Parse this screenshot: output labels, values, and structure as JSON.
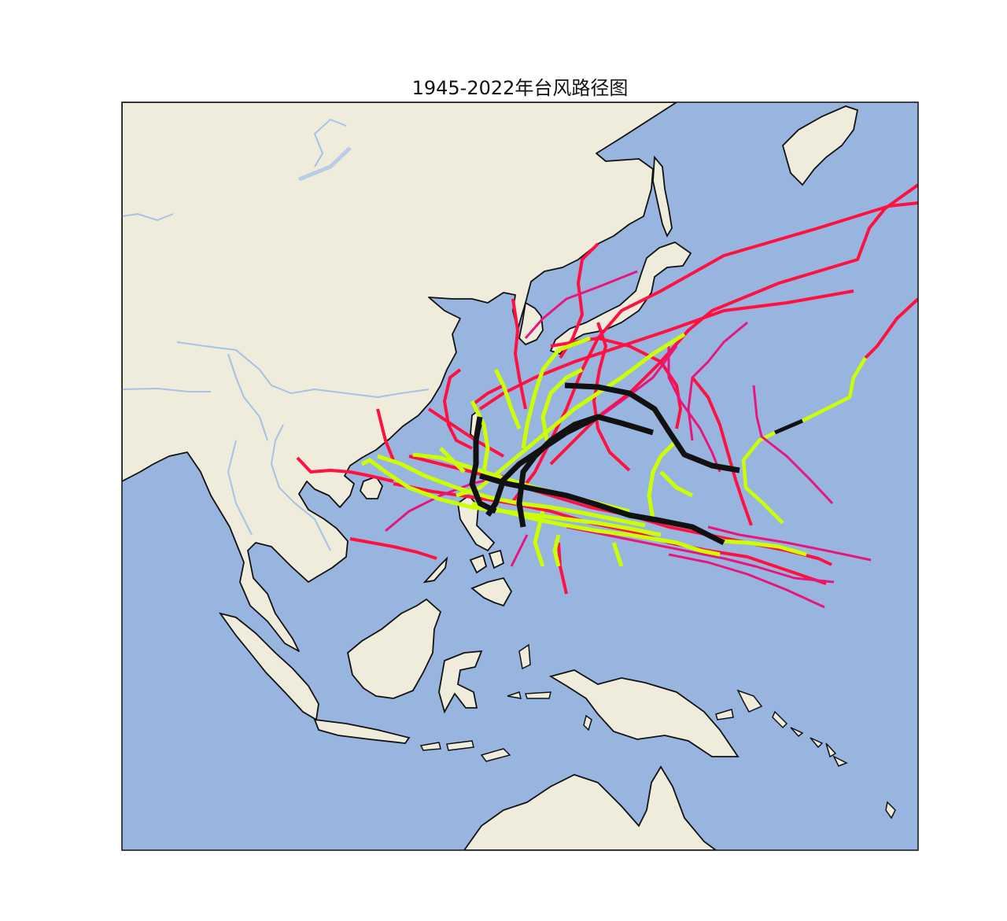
{
  "title": "1945-2022年台风路径图",
  "colors": {
    "ocean": "#98b5e0",
    "land": "#efecdc",
    "coast": "#111111",
    "river": "#a7c2e2",
    "strong": "#ff1040",
    "medium": "#e8157a",
    "weak": "#ccff00",
    "super": "#111111"
  }
}
